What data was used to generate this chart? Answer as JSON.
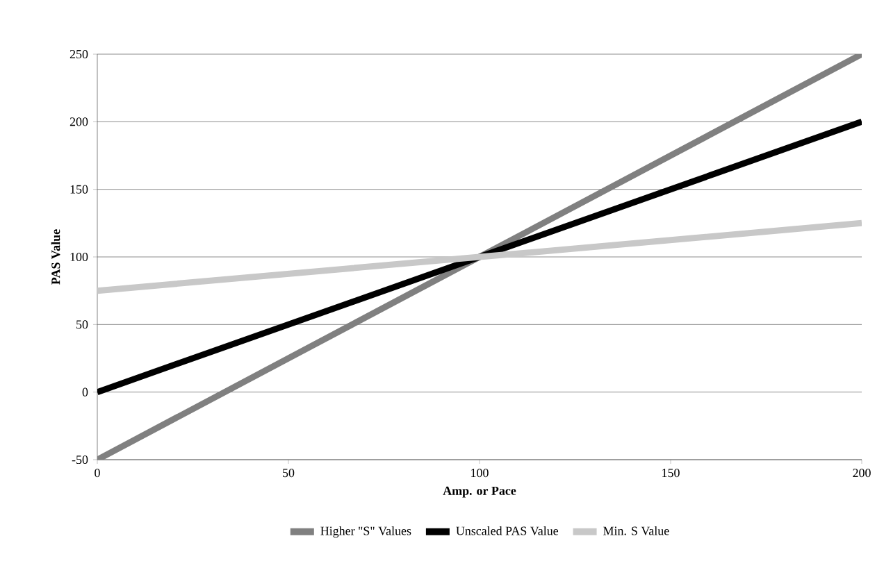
{
  "chart_data": {
    "type": "line",
    "xlabel": "Amp. or Pace",
    "ylabel": "PAS Value",
    "x": [
      0,
      100,
      200
    ],
    "series": [
      {
        "name": "Higher \"S\" Values",
        "color": "#808080",
        "values": [
          -50,
          100,
          250
        ]
      },
      {
        "name": "Unscaled PAS Value",
        "color": "#000000",
        "values": [
          0,
          100,
          200
        ]
      },
      {
        "name": "Min. S Value",
        "color": "#c8c8c8",
        "values": [
          75,
          100,
          125
        ]
      }
    ],
    "xlim": [
      0,
      200
    ],
    "ylim": [
      -50,
      250
    ],
    "xticks": [
      0,
      50,
      100,
      150,
      200
    ],
    "yticks": [
      -50,
      0,
      50,
      100,
      150,
      200,
      250
    ],
    "grid": "y",
    "legend": "bottom",
    "marker": "none",
    "line_style": "solid"
  }
}
